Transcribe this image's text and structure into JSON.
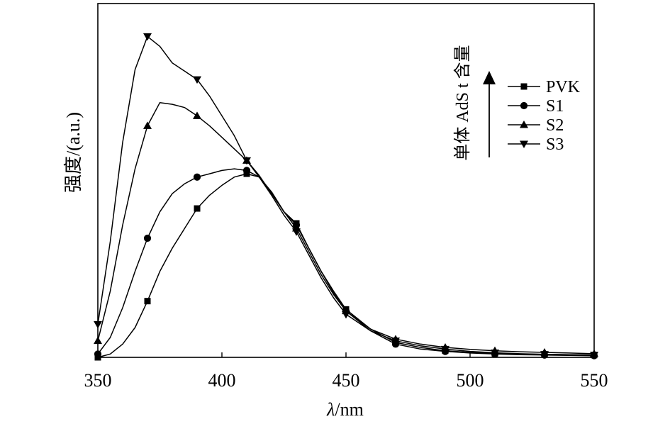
{
  "chart_data": {
    "type": "line",
    "title": "",
    "xlabel_var": "λ",
    "xlabel_unit": "/nm",
    "ylabel": "强度/(a.u.)",
    "xlim": [
      350,
      550
    ],
    "ylim": [
      0,
      1.0
    ],
    "x_ticks": [
      350,
      400,
      450,
      500,
      550
    ],
    "y_ticks_shown": false,
    "grid": false,
    "legend_position": "top-right",
    "annotation": "单体 AdS t 含量",
    "series": [
      {
        "name": "PVK",
        "marker": "square",
        "x": [
          350,
          355,
          360,
          365,
          370,
          375,
          380,
          385,
          390,
          395,
          400,
          405,
          410,
          415,
          420,
          425,
          430,
          435,
          440,
          445,
          450,
          460,
          470,
          480,
          490,
          500,
          510,
          520,
          530,
          540,
          550
        ],
        "y": [
          0.0,
          0.01,
          0.04,
          0.09,
          0.17,
          0.26,
          0.33,
          0.39,
          0.45,
          0.49,
          0.52,
          0.545,
          0.555,
          0.545,
          0.5,
          0.44,
          0.405,
          0.33,
          0.26,
          0.2,
          0.145,
          0.085,
          0.045,
          0.03,
          0.02,
          0.015,
          0.012,
          0.01,
          0.009,
          0.008,
          0.007
        ],
        "marker_x": [
          350,
          370,
          390,
          410,
          430,
          450,
          470,
          490,
          510,
          530,
          550
        ]
      },
      {
        "name": "S1",
        "marker": "circle",
        "x": [
          350,
          355,
          360,
          365,
          370,
          375,
          380,
          385,
          390,
          395,
          400,
          405,
          410,
          415,
          420,
          425,
          430,
          435,
          440,
          445,
          450,
          460,
          470,
          480,
          490,
          500,
          510,
          520,
          530,
          540,
          550
        ],
        "y": [
          0.01,
          0.06,
          0.15,
          0.26,
          0.36,
          0.44,
          0.495,
          0.525,
          0.545,
          0.555,
          0.565,
          0.57,
          0.565,
          0.545,
          0.5,
          0.44,
          0.4,
          0.33,
          0.26,
          0.195,
          0.14,
          0.08,
          0.04,
          0.025,
          0.018,
          0.013,
          0.01,
          0.008,
          0.007,
          0.006,
          0.005
        ],
        "marker_x": [
          350,
          370,
          390,
          410,
          430,
          450,
          470,
          490,
          510,
          530,
          550
        ]
      },
      {
        "name": "S2",
        "marker": "triangle-up",
        "x": [
          350,
          355,
          360,
          365,
          370,
          375,
          380,
          385,
          390,
          395,
          400,
          405,
          410,
          415,
          420,
          425,
          430,
          435,
          440,
          445,
          450,
          460,
          470,
          480,
          490,
          500,
          510,
          520,
          530,
          540,
          550
        ],
        "y": [
          0.05,
          0.2,
          0.4,
          0.57,
          0.7,
          0.77,
          0.765,
          0.755,
          0.73,
          0.7,
          0.665,
          0.63,
          0.595,
          0.55,
          0.495,
          0.44,
          0.39,
          0.32,
          0.25,
          0.19,
          0.14,
          0.085,
          0.055,
          0.04,
          0.03,
          0.024,
          0.02,
          0.017,
          0.015,
          0.013,
          0.011
        ],
        "marker_x": [
          350,
          370,
          390,
          410,
          430,
          450,
          470,
          490,
          510,
          530,
          550
        ]
      },
      {
        "name": "S3",
        "marker": "triangle-down",
        "x": [
          350,
          355,
          360,
          365,
          370,
          375,
          380,
          385,
          390,
          395,
          400,
          405,
          410,
          415,
          420,
          425,
          430,
          435,
          440,
          445,
          450,
          460,
          470,
          480,
          490,
          500,
          510,
          520,
          530,
          540,
          550
        ],
        "y": [
          0.1,
          0.35,
          0.65,
          0.87,
          0.97,
          0.94,
          0.89,
          0.865,
          0.84,
          0.79,
          0.73,
          0.67,
          0.595,
          0.545,
          0.49,
          0.43,
          0.38,
          0.31,
          0.24,
          0.18,
          0.13,
          0.08,
          0.05,
          0.035,
          0.025,
          0.018,
          0.014,
          0.011,
          0.009,
          0.008,
          0.007
        ],
        "marker_x": [
          350,
          370,
          390,
          410,
          430,
          450,
          470,
          490,
          510,
          530,
          550
        ]
      }
    ]
  }
}
